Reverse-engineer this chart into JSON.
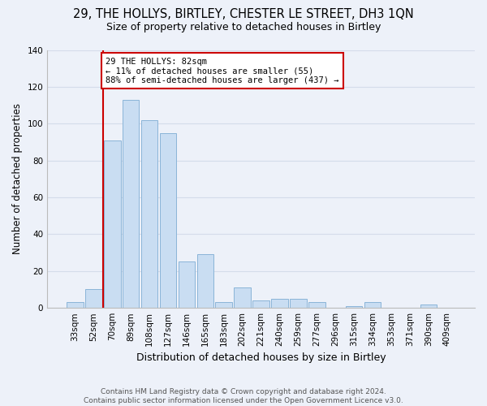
{
  "title_line1": "29, THE HOLLYS, BIRTLEY, CHESTER LE STREET, DH3 1QN",
  "title_line2": "Size of property relative to detached houses in Birtley",
  "xlabel": "Distribution of detached houses by size in Birtley",
  "ylabel": "Number of detached properties",
  "bar_color": "#c9ddf2",
  "bar_edge_color": "#8ab4d8",
  "categories": [
    "33sqm",
    "52sqm",
    "70sqm",
    "89sqm",
    "108sqm",
    "127sqm",
    "146sqm",
    "165sqm",
    "183sqm",
    "202sqm",
    "221sqm",
    "240sqm",
    "259sqm",
    "277sqm",
    "296sqm",
    "315sqm",
    "334sqm",
    "353sqm",
    "371sqm",
    "390sqm",
    "409sqm"
  ],
  "values": [
    3,
    10,
    91,
    113,
    102,
    95,
    25,
    29,
    3,
    11,
    4,
    5,
    5,
    3,
    0,
    1,
    3,
    0,
    0,
    2,
    0
  ],
  "annotation_text": "29 THE HOLLYS: 82sqm\n← 11% of detached houses are smaller (55)\n88% of semi-detached houses are larger (437) →",
  "vline_color": "#cc0000",
  "vline_x": 1.5,
  "annotation_box_color": "#ffffff",
  "annotation_box_edge_color": "#cc0000",
  "footer_line1": "Contains HM Land Registry data © Crown copyright and database right 2024.",
  "footer_line2": "Contains public sector information licensed under the Open Government Licence v3.0.",
  "ylim": [
    0,
    140
  ],
  "grid_color": "#d4dcea",
  "background_color": "#edf1f9",
  "title1_fontsize": 10.5,
  "title2_fontsize": 9,
  "ylabel_fontsize": 8.5,
  "xlabel_fontsize": 9,
  "tick_fontsize": 7.5,
  "annotation_fontsize": 7.5,
  "footer_fontsize": 6.5
}
